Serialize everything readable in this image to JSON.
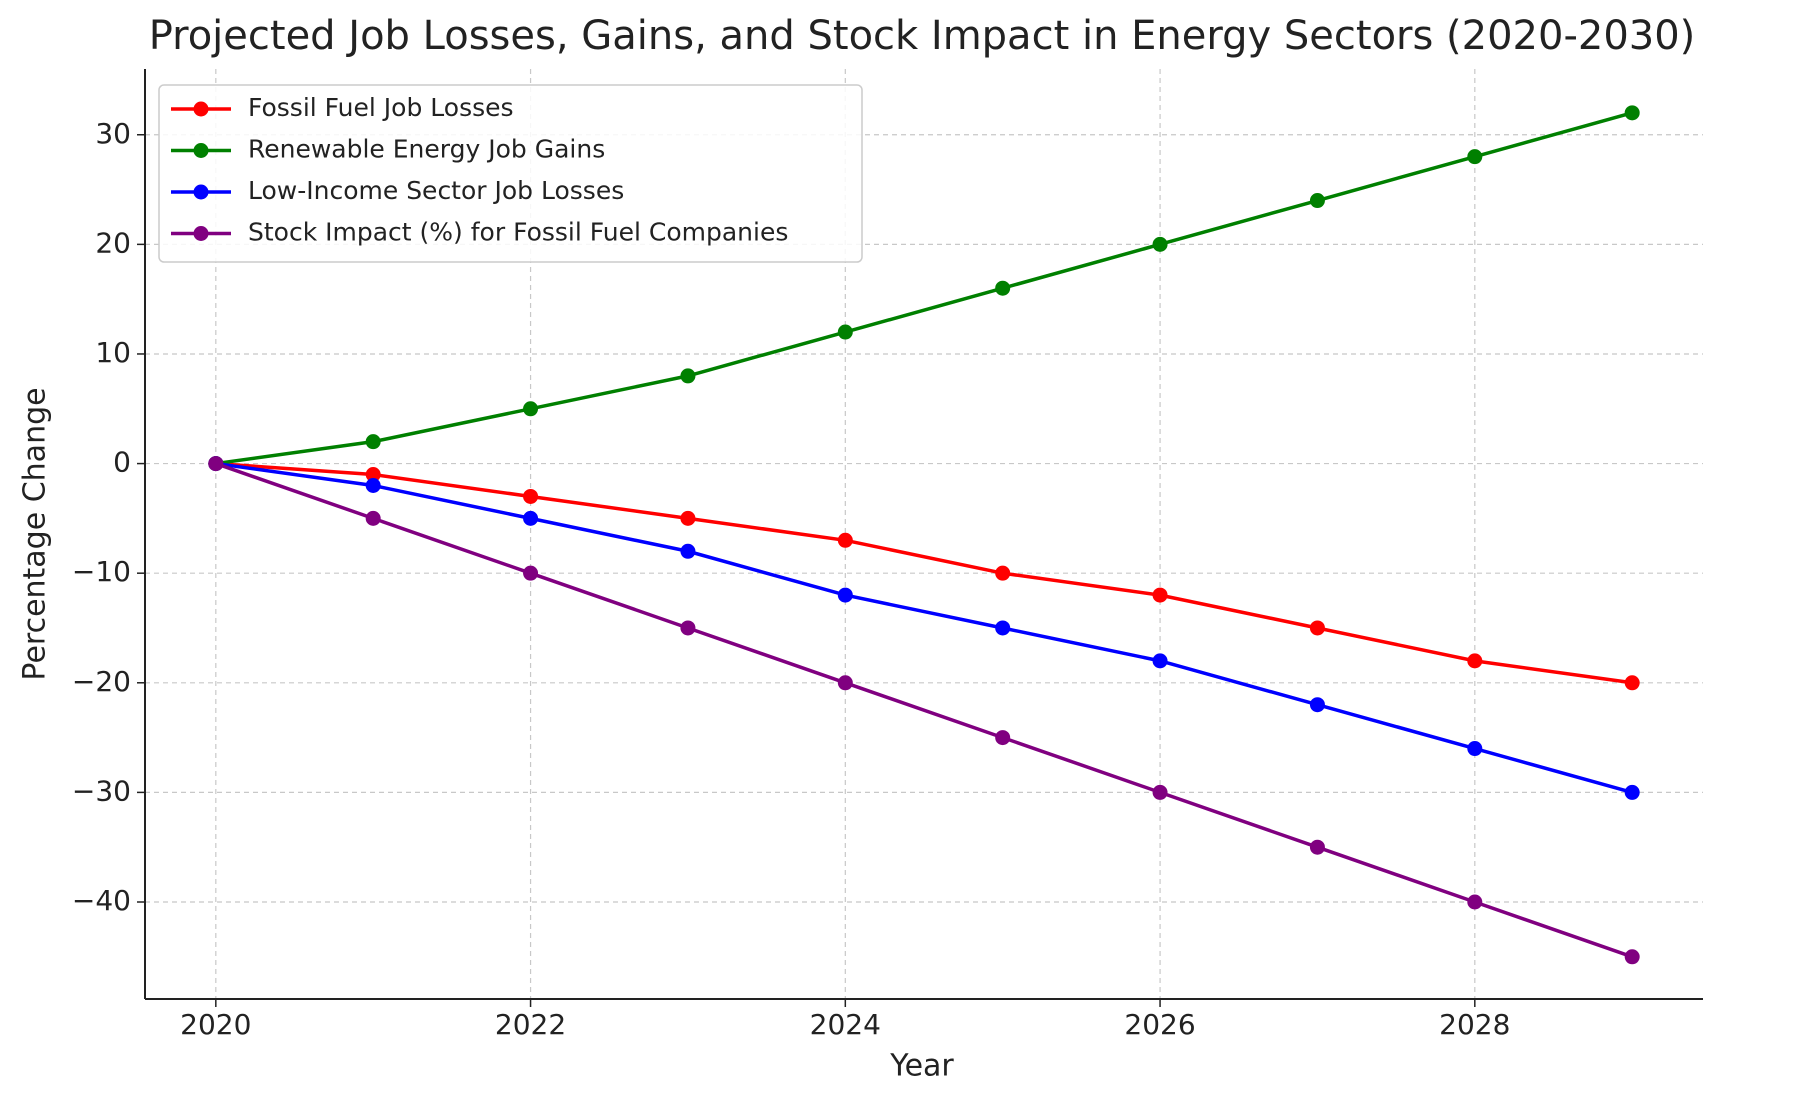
{
  "chart_data": {
    "type": "line",
    "title": "Projected Job Losses, Gains, and Stock Impact in Energy Sectors (2020-2030)",
    "x_label": "Year",
    "y_label": "Percentage Change",
    "x": [
      2020,
      2021,
      2022,
      2023,
      2024,
      2025,
      2026,
      2027,
      2028,
      2029
    ],
    "series": [
      {
        "name": "Fossil Fuel Job Losses",
        "color": "#ff0000",
        "values": [
          0,
          -1,
          -3,
          -5,
          -7,
          -10,
          -12,
          -15,
          -18,
          -20
        ]
      },
      {
        "name": "Renewable Energy Job Gains",
        "color": "#008000",
        "values": [
          0,
          2,
          5,
          8,
          12,
          16,
          20,
          24,
          28,
          32
        ]
      },
      {
        "name": "Low-Income Sector Job Losses",
        "color": "#0000ff",
        "values": [
          0,
          -2,
          -5,
          -8,
          -12,
          -15,
          -18,
          -22,
          -26,
          -30
        ]
      },
      {
        "name": "Stock Impact (%) for Fossil Fuel Companies",
        "color": "#800080",
        "values": [
          0,
          -5,
          -10,
          -15,
          -20,
          -25,
          -30,
          -35,
          -40,
          -45
        ]
      }
    ],
    "xlim": [
      2019.55,
      2029.45
    ],
    "xticks": [
      2020,
      2022,
      2024,
      2026,
      2028
    ],
    "ylim": [
      -48.85,
      36
    ],
    "yticks": [
      {
        "value": -40,
        "label": "−40"
      },
      {
        "value": -30,
        "label": "−30"
      },
      {
        "value": -20,
        "label": "−20"
      },
      {
        "value": -10,
        "label": "−10"
      },
      0,
      10,
      20,
      30
    ],
    "grid": true,
    "legend": "upper left"
  }
}
